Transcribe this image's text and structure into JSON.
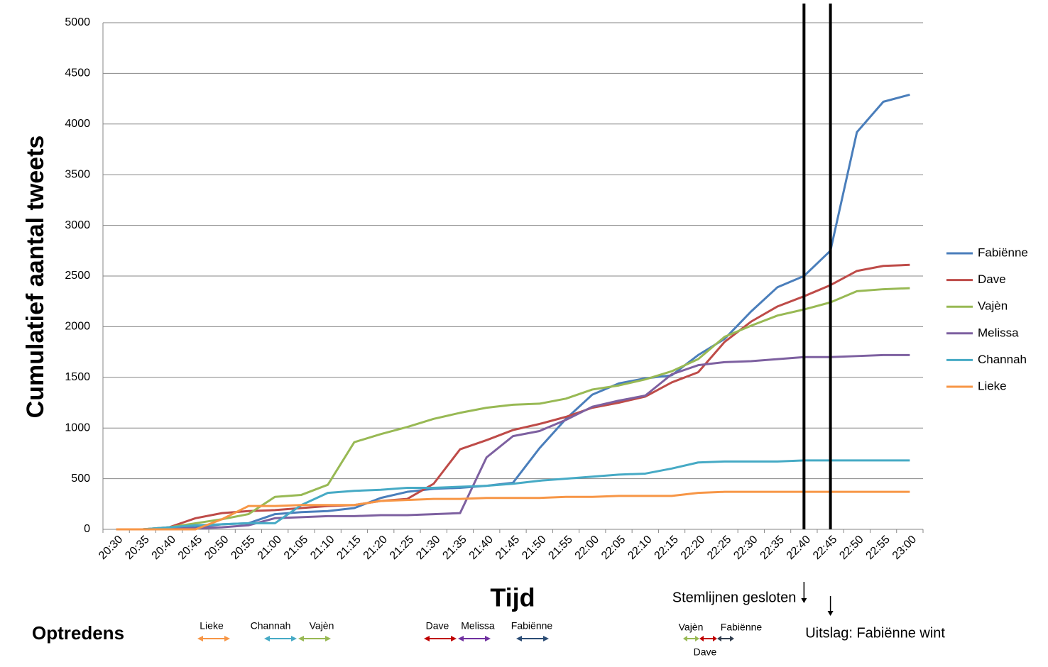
{
  "chart_data": {
    "type": "line",
    "y_title": "Cumulatief aantal tweets",
    "x_title": "Tijd",
    "categories": [
      "20:30",
      "20:35",
      "20:40",
      "20:45",
      "20:50",
      "20:55",
      "21:00",
      "21:05",
      "21:10",
      "21:15",
      "21:20",
      "21:25",
      "21:30",
      "21:35",
      "21:40",
      "21:45",
      "21:50",
      "21:55",
      "22:00",
      "22:05",
      "22:10",
      "22:15",
      "22:20",
      "22:25",
      "22:30",
      "22:35",
      "22:40",
      "22:45",
      "22:50",
      "22:55",
      "23:00"
    ],
    "ylim": [
      0,
      5000
    ],
    "yticks": [
      0,
      500,
      1000,
      1500,
      2000,
      2500,
      3000,
      3500,
      4000,
      4500,
      5000
    ],
    "grid": true,
    "legend": "right",
    "series": [
      {
        "name": "Fabiënne",
        "color": "#4a7ebb",
        "values": [
          0,
          0,
          10,
          20,
          50,
          60,
          150,
          170,
          180,
          210,
          310,
          370,
          400,
          410,
          430,
          460,
          800,
          1090,
          1330,
          1440,
          1490,
          1520,
          1720,
          1880,
          2150,
          2390,
          2500,
          2750,
          3920,
          4220,
          4290
        ]
      },
      {
        "name": "Dave",
        "color": "#be4b48",
        "values": [
          0,
          0,
          20,
          110,
          160,
          180,
          190,
          210,
          230,
          240,
          280,
          300,
          450,
          790,
          880,
          980,
          1040,
          1110,
          1200,
          1250,
          1310,
          1450,
          1550,
          1850,
          2050,
          2200,
          2300,
          2410,
          2550,
          2600,
          2610
        ]
      },
      {
        "name": "Vajèn",
        "color": "#98b954",
        "values": [
          0,
          0,
          20,
          60,
          100,
          150,
          320,
          340,
          440,
          860,
          940,
          1010,
          1090,
          1150,
          1200,
          1230,
          1240,
          1290,
          1380,
          1420,
          1480,
          1560,
          1680,
          1900,
          2010,
          2110,
          2170,
          2240,
          2350,
          2370,
          2380
        ]
      },
      {
        "name": "Melissa",
        "color": "#7d60a0",
        "values": [
          0,
          0,
          10,
          10,
          20,
          40,
          110,
          120,
          130,
          130,
          140,
          140,
          150,
          160,
          710,
          920,
          970,
          1080,
          1210,
          1270,
          1320,
          1530,
          1620,
          1650,
          1660,
          1680,
          1700,
          1700,
          1710,
          1720,
          1720
        ]
      },
      {
        "name": "Channah",
        "color": "#46aac5",
        "values": [
          0,
          0,
          20,
          40,
          50,
          60,
          60,
          240,
          360,
          380,
          390,
          410,
          410,
          420,
          430,
          450,
          480,
          500,
          520,
          540,
          550,
          600,
          660,
          670,
          670,
          670,
          680,
          680,
          680,
          680,
          680
        ]
      },
      {
        "name": "Lieke",
        "color": "#f79646",
        "values": [
          0,
          0,
          0,
          0,
          100,
          230,
          230,
          240,
          240,
          240,
          280,
          290,
          300,
          300,
          310,
          310,
          310,
          320,
          320,
          330,
          330,
          330,
          360,
          370,
          370,
          370,
          370,
          370,
          370,
          370,
          370
        ]
      }
    ],
    "annotations": [
      {
        "text": "Stemlijnen gesloten",
        "at": "22:40"
      },
      {
        "text": "Uitslag: Fabiënne wint",
        "at": "22:45"
      }
    ],
    "performances": {
      "title": "Optredens",
      "items": [
        {
          "name": "Lieke",
          "color": "#f79646"
        },
        {
          "name": "Channah",
          "color": "#46aac5"
        },
        {
          "name": "Vajèn",
          "color": "#98b954"
        },
        {
          "name": "Dave",
          "color": "#c00000"
        },
        {
          "name": "Melissa",
          "color": "#7030a0"
        },
        {
          "name": "Fabiënne",
          "color": "#2c4d75"
        },
        {
          "name": "Vajèn",
          "color": "#98b954"
        },
        {
          "name": "Dave",
          "color": "#c00000"
        },
        {
          "name": "Fabiënne",
          "color": "#333f50"
        }
      ]
    }
  }
}
